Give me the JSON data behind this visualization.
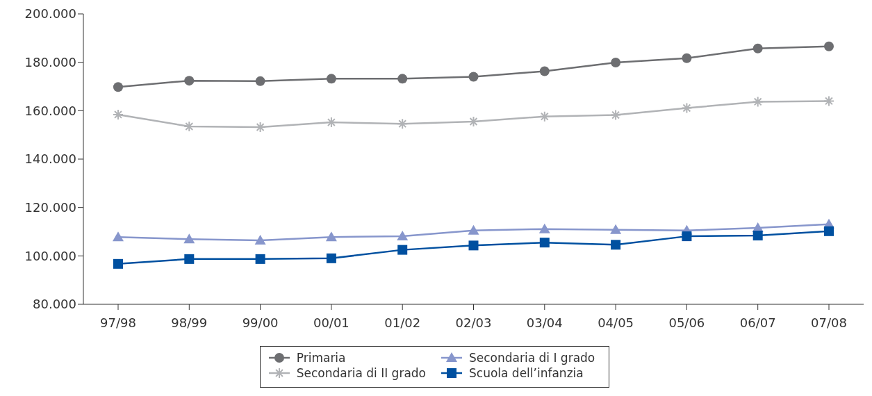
{
  "chart_data": {
    "type": "line",
    "categories": [
      "97/98",
      "98/99",
      "99/00",
      "00/01",
      "01/02",
      "02/03",
      "03/04",
      "04/05",
      "05/06",
      "06/07",
      "07/08"
    ],
    "ylim": [
      80000,
      200000
    ],
    "yticks": [
      {
        "value": 80000,
        "label": "80.000"
      },
      {
        "value": 100000,
        "label": "100.000"
      },
      {
        "value": 120000,
        "label": "120.000"
      },
      {
        "value": 140000,
        "label": "140.000"
      },
      {
        "value": 160000,
        "label": "160.000"
      },
      {
        "value": 180000,
        "label": "180.000"
      },
      {
        "value": 200000,
        "label": "200.000"
      }
    ],
    "grid": false,
    "legend": "bottom",
    "line_style": "solid",
    "series": [
      {
        "name": "Primaria",
        "color": "#6d6e71",
        "marker": "circle",
        "values": [
          169800,
          172400,
          172200,
          173200,
          173200,
          174000,
          176300,
          179900,
          181700,
          185700,
          186600
        ]
      },
      {
        "name": "Secondaria di II grado",
        "color": "#b1b3b6",
        "marker": "cross",
        "values": [
          158400,
          153500,
          153200,
          155200,
          154600,
          155500,
          157600,
          158200,
          161100,
          163700,
          164000
        ]
      },
      {
        "name": "Secondaria di I grado",
        "color": "#8796cc",
        "marker": "triangle",
        "values": [
          107800,
          106900,
          106400,
          107800,
          108100,
          110500,
          111100,
          110800,
          110500,
          111600,
          113100
        ]
      },
      {
        "name": "Scuola dell’infanzia",
        "color": "#0050a0",
        "marker": "square",
        "values": [
          96700,
          98700,
          98700,
          99000,
          102500,
          104300,
          105500,
          104600,
          108100,
          108400,
          110200
        ]
      }
    ]
  }
}
